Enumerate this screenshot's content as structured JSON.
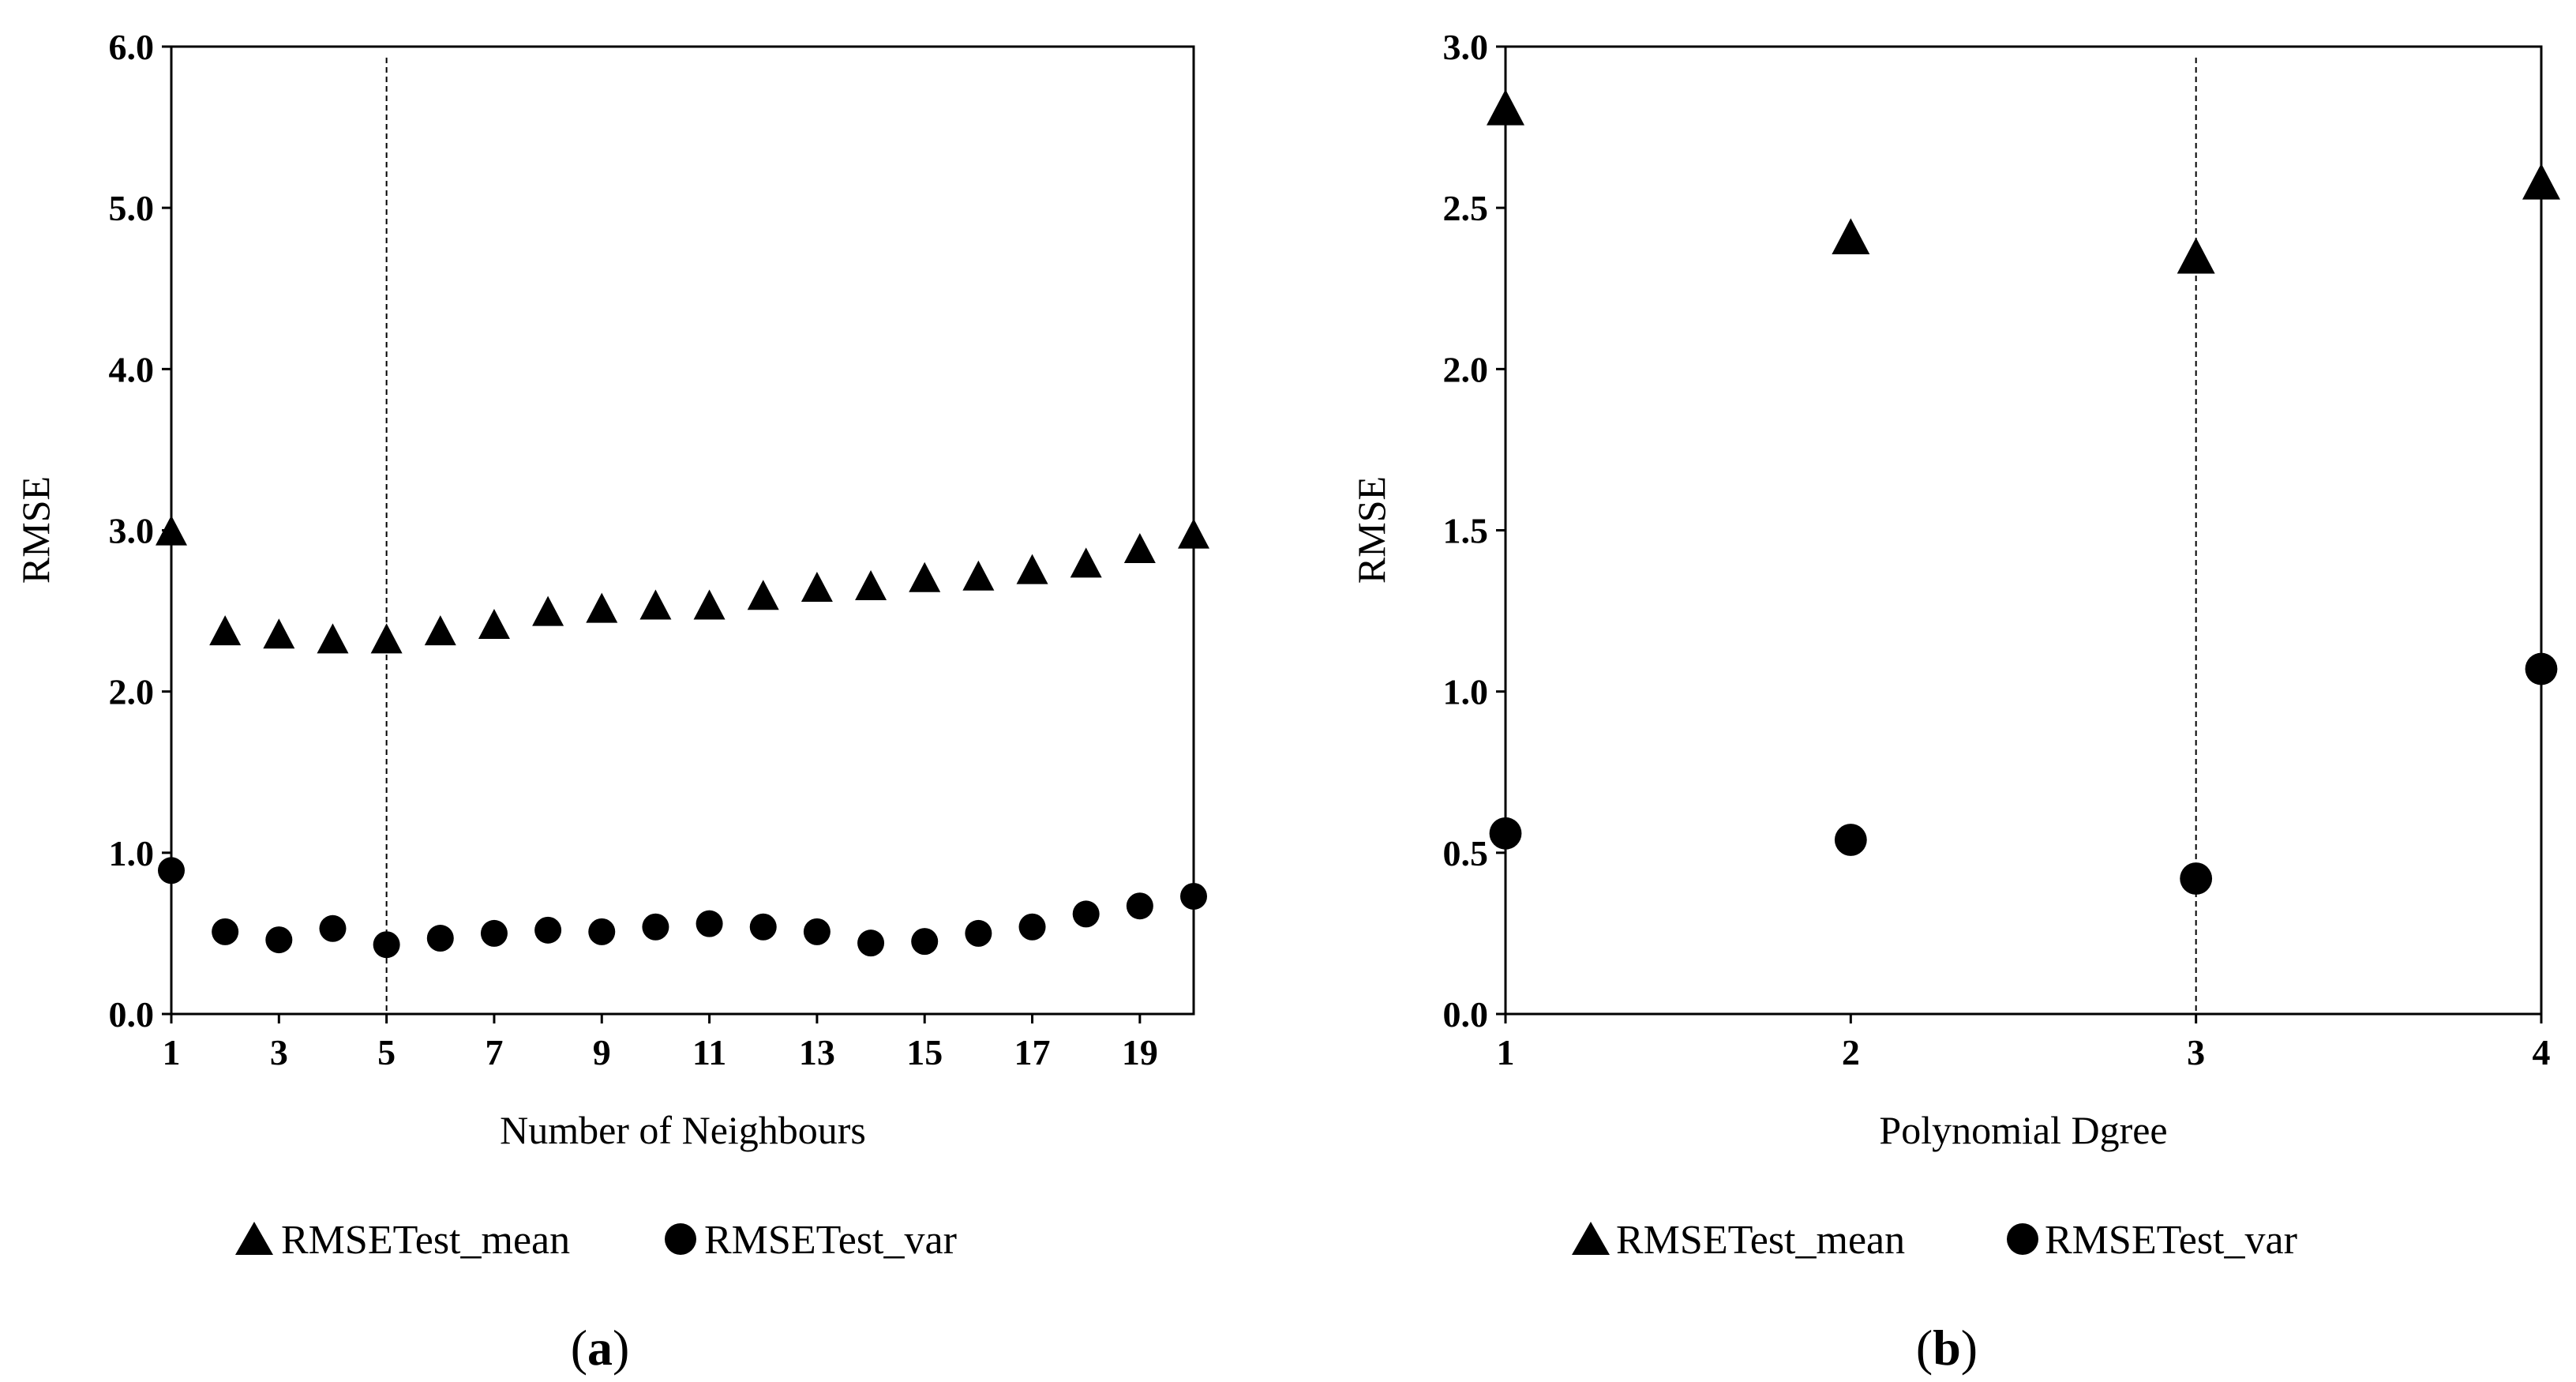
{
  "chart_data": [
    {
      "type": "scatter",
      "panel_label": "a",
      "panel_label_open": "(",
      "panel_label_close": ")",
      "xlabel": "Number of Neighbours",
      "ylabel": "RMSE",
      "xlim": [
        1,
        20
      ],
      "ylim": [
        0,
        6
      ],
      "x_ticks": [
        1,
        3,
        5,
        7,
        9,
        11,
        13,
        15,
        17,
        19
      ],
      "x_tick_labels": [
        "1",
        "3",
        "5",
        "7",
        "9",
        "11",
        "13",
        "15",
        "17",
        "19"
      ],
      "y_ticks": [
        0,
        1,
        2,
        3,
        4,
        5,
        6
      ],
      "y_tick_labels": [
        "0.0",
        "1.0",
        "2.0",
        "3.0",
        "4.0",
        "5.0",
        "6.0"
      ],
      "reference_line_x": 5,
      "legend": [
        "RMSETest_mean",
        "RMSETest_var"
      ],
      "legend_position": "bottom",
      "x": [
        1,
        2,
        3,
        4,
        5,
        6,
        7,
        8,
        9,
        10,
        11,
        12,
        13,
        14,
        15,
        16,
        17,
        18,
        19,
        20
      ],
      "series": [
        {
          "name": "RMSETest_mean",
          "marker": "triangle",
          "values": [
            2.98,
            2.36,
            2.34,
            2.31,
            2.31,
            2.36,
            2.4,
            2.48,
            2.5,
            2.52,
            2.52,
            2.58,
            2.63,
            2.64,
            2.69,
            2.7,
            2.74,
            2.78,
            2.87,
            2.96
          ]
        },
        {
          "name": "RMSETest_var",
          "marker": "circle",
          "values": [
            0.89,
            0.51,
            0.46,
            0.53,
            0.43,
            0.47,
            0.5,
            0.52,
            0.51,
            0.54,
            0.56,
            0.54,
            0.51,
            0.44,
            0.45,
            0.5,
            0.54,
            0.62,
            0.67,
            0.73
          ]
        }
      ]
    },
    {
      "type": "scatter",
      "panel_label": "b",
      "panel_label_open": "(",
      "panel_label_close": ")",
      "xlabel": "Polynomial Dgree",
      "ylabel": "RMSE",
      "xlim": [
        1,
        4
      ],
      "ylim": [
        0,
        3
      ],
      "x_ticks": [
        1,
        2,
        3,
        4
      ],
      "x_tick_labels": [
        "1",
        "2",
        "3",
        "4"
      ],
      "y_ticks": [
        0,
        0.5,
        1,
        1.5,
        2,
        2.5,
        3
      ],
      "y_tick_labels": [
        "0.0",
        "0.5",
        "1.0",
        "1.5",
        "2.0",
        "2.5",
        "3.0"
      ],
      "reference_line_x": 3,
      "legend": [
        "RMSETest_mean",
        "RMSETest_var"
      ],
      "legend_position": "bottom",
      "x": [
        1,
        2,
        3,
        4
      ],
      "series": [
        {
          "name": "RMSETest_mean",
          "marker": "triangle",
          "values": [
            2.8,
            2.4,
            2.34,
            2.57
          ]
        },
        {
          "name": "RMSETest_var",
          "marker": "circle",
          "values": [
            0.56,
            0.54,
            0.42,
            1.07
          ]
        }
      ]
    }
  ]
}
